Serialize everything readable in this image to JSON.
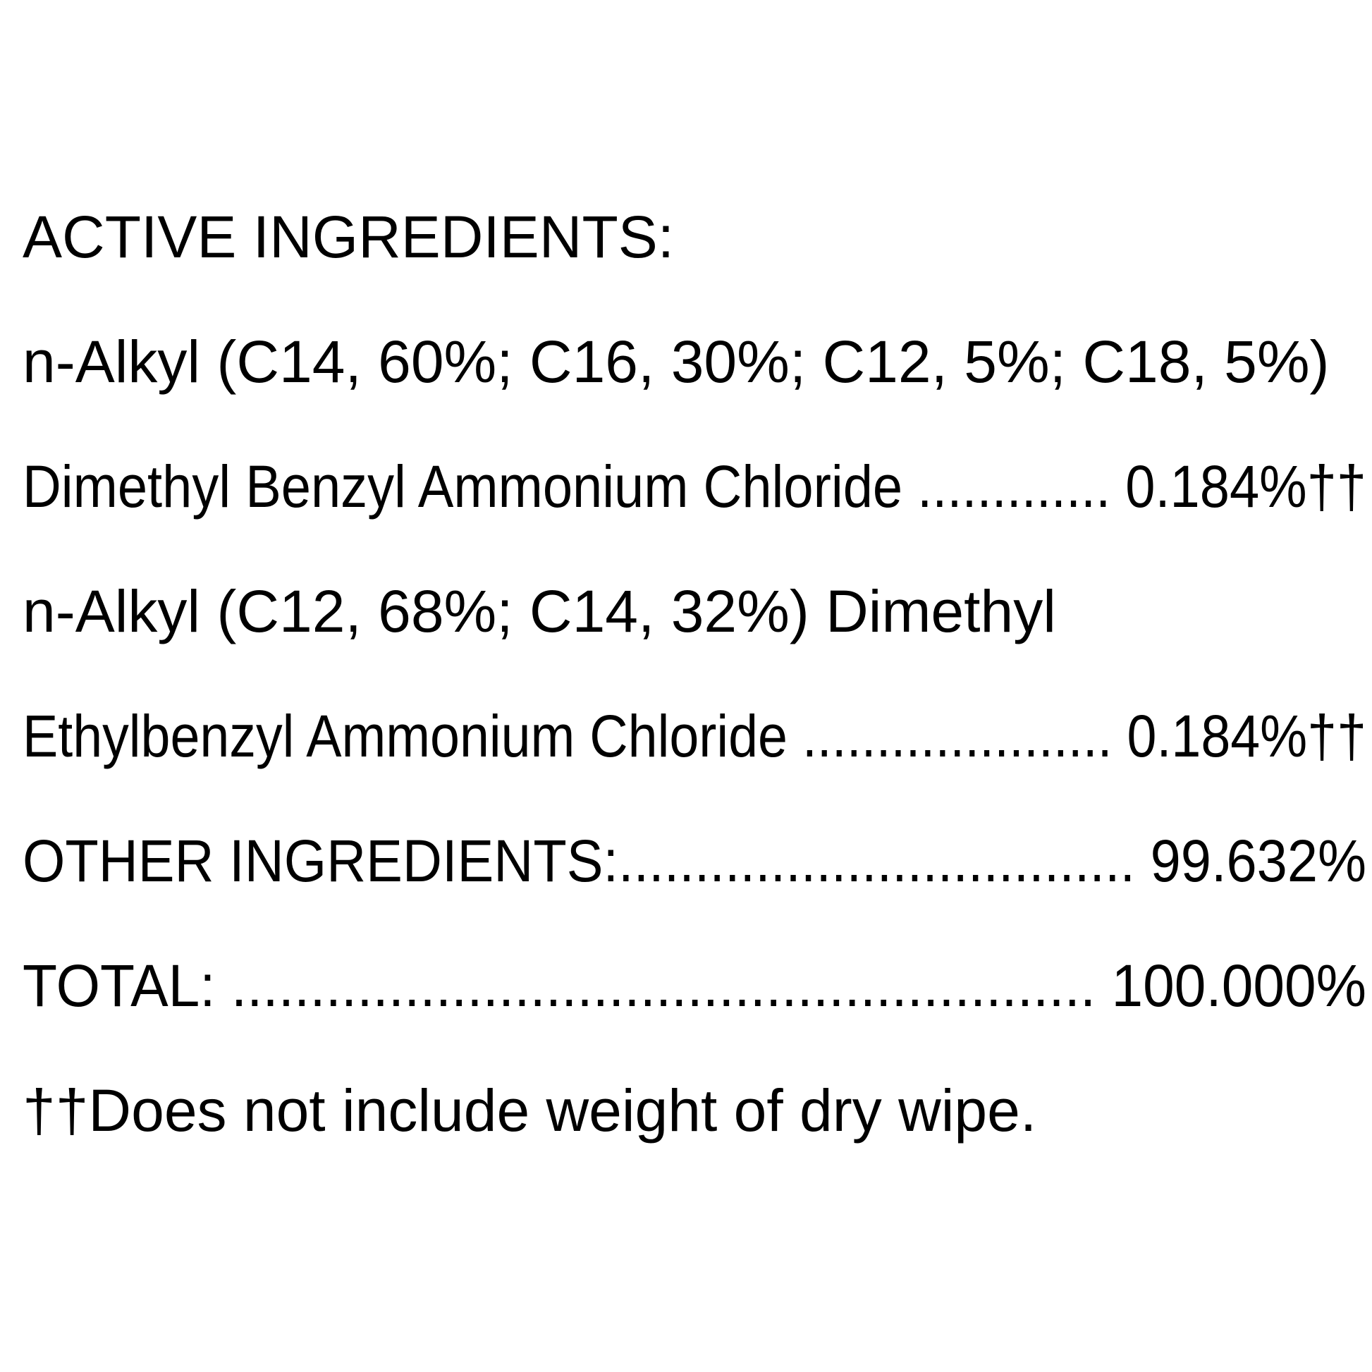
{
  "title": "ACTIVE INGREDIENTS:",
  "lines": [
    "n-Alkyl (C14, 60%; C16, 30%; C12, 5%; C18, 5%)",
    "Dimethyl Benzyl Ammonium Chloride ............. 0.184%††",
    "n-Alkyl (C12, 68%; C14, 32%) Dimethyl",
    "Ethylbenzyl Ammonium Chloride ..................... 0.184%††",
    "OTHER INGREDIENTS:.................................. 99.632%",
    "TOTAL: ....................................................... 100.000%"
  ],
  "footnote": "††Does not include weight of dry wipe."
}
